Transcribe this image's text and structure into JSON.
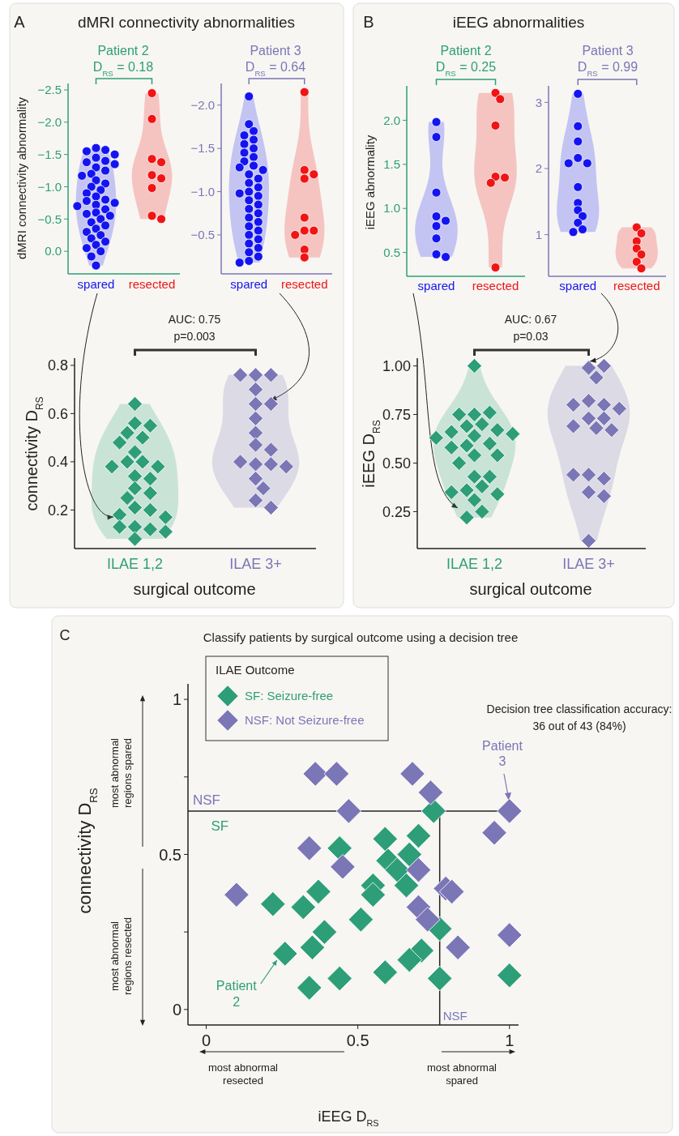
{
  "chart_data": [
    {
      "type": "scatter",
      "title": "Patient 2",
      "subtitle": "D$_{RS}$ = 0.18",
      "ylabel": "dMRI connectivity abnormality",
      "annotations": [
        "A",
        "dMRI connectivity abnormalities"
      ],
      "marker": "circle",
      "categories": [
        "spared",
        "resected"
      ],
      "ylim": [
        0.35,
        -2.6
      ],
      "yticks": [
        {
          "value": -2.5,
          "label": "−2.5"
        },
        {
          "value": -2,
          "label": "−2.0"
        },
        {
          "value": -1.5,
          "label": "−1.5"
        },
        {
          "value": -1,
          "label": "−1.0"
        },
        {
          "value": -0.5,
          "label": "−0.5"
        },
        {
          "value": 0,
          "label": "0.0"
        }
      ],
      "series": [
        {
          "color": "#1414f0",
          "x": [
            "spared",
            "spared",
            "spared",
            "spared",
            "spared",
            "spared",
            "spared",
            "spared",
            "spared",
            "spared",
            "spared",
            "spared",
            "spared",
            "spared",
            "spared",
            "spared",
            "spared",
            "spared",
            "spared",
            "spared",
            "spared",
            "spared",
            "spared",
            "spared",
            "spared",
            "spared",
            "spared",
            "spared",
            "spared",
            "spared",
            "spared",
            "spared",
            "spared",
            "spared",
            "spared",
            "spared",
            "spared",
            "spared",
            "spared",
            "spared"
          ],
          "values": [
            -1.6,
            -1.57,
            -1.55,
            -1.5,
            -1.45,
            -1.4,
            -1.38,
            -1.35,
            -1.3,
            -1.25,
            -1.2,
            -1.17,
            -1.1,
            -1.05,
            -1.0,
            -0.95,
            -0.9,
            -0.85,
            -0.8,
            -0.78,
            -0.75,
            -0.72,
            -0.7,
            -0.65,
            -0.6,
            -0.58,
            -0.55,
            -0.5,
            -0.45,
            -0.4,
            -0.35,
            -0.3,
            -0.25,
            -0.2,
            -0.15,
            -0.1,
            -0.05,
            0.0,
            0.08,
            0.22
          ]
        },
        {
          "color": "#f01414",
          "x": [
            "resected",
            "resected",
            "resected",
            "resected",
            "resected",
            "resected",
            "resected",
            "resected",
            "resected"
          ],
          "values": [
            -2.45,
            -2.05,
            -1.43,
            -1.38,
            -1.18,
            -1.13,
            -0.98,
            -0.55,
            -0.5
          ]
        }
      ]
    },
    {
      "type": "scatter",
      "title": "Patient 3",
      "subtitle": "D$_{RS}$ = 0.64",
      "marker": "circle",
      "categories": [
        "spared",
        "resected"
      ],
      "ylim": [
        -0.05,
        -2.25
      ],
      "yticks": [
        {
          "value": -2,
          "label": "−2.0"
        },
        {
          "value": -1.5,
          "label": "−1.5"
        },
        {
          "value": -1,
          "label": "−1.0"
        },
        {
          "value": -0.5,
          "label": "−0.5"
        }
      ],
      "series": [
        {
          "color": "#1414f0",
          "x": [
            "spared",
            "spared",
            "spared",
            "spared",
            "spared",
            "spared",
            "spared",
            "spared",
            "spared",
            "spared",
            "spared",
            "spared",
            "spared",
            "spared",
            "spared",
            "spared",
            "spared",
            "spared",
            "spared",
            "spared",
            "spared",
            "spared",
            "spared",
            "spared",
            "spared",
            "spared",
            "spared",
            "spared",
            "spared",
            "spared",
            "spared",
            "spared",
            "spared",
            "spared",
            "spared",
            "spared"
          ],
          "values": [
            -2.1,
            -1.78,
            -1.7,
            -1.65,
            -1.6,
            -1.55,
            -1.5,
            -1.45,
            -1.4,
            -1.35,
            -1.3,
            -1.28,
            -1.25,
            -1.2,
            -1.15,
            -1.1,
            -1.05,
            -1.0,
            -0.98,
            -0.95,
            -0.9,
            -0.85,
            -0.8,
            -0.75,
            -0.7,
            -0.65,
            -0.6,
            -0.55,
            -0.5,
            -0.45,
            -0.4,
            -0.35,
            -0.3,
            -0.25,
            -0.2,
            -0.18
          ]
        },
        {
          "color": "#f01414",
          "x": [
            "resected",
            "resected",
            "resected",
            "resected",
            "resected",
            "resected",
            "resected",
            "resected",
            "resected",
            "resected"
          ],
          "values": [
            -2.15,
            -1.25,
            -1.2,
            -1.15,
            -0.7,
            -0.55,
            -0.55,
            -0.5,
            -0.33,
            -0.24
          ]
        }
      ]
    },
    {
      "type": "scatter",
      "ylabel": "connectivity D$_{RS}$",
      "xlabel": "surgical outcome",
      "annotations": [
        "AUC: 0.75",
        "p=0.003"
      ],
      "marker": "diamond",
      "categories": [
        "ILAE 1,2",
        "ILAE 3+"
      ],
      "ylim": [
        0.04,
        0.83
      ],
      "yticks": [
        0.2,
        0.4,
        0.6,
        0.8
      ],
      "series": [
        {
          "color": "#2e9e78",
          "x": [
            "ILAE 1,2",
            "ILAE 1,2",
            "ILAE 1,2",
            "ILAE 1,2",
            "ILAE 1,2",
            "ILAE 1,2",
            "ILAE 1,2",
            "ILAE 1,2",
            "ILAE 1,2",
            "ILAE 1,2",
            "ILAE 1,2",
            "ILAE 1,2",
            "ILAE 1,2",
            "ILAE 1,2",
            "ILAE 1,2",
            "ILAE 1,2",
            "ILAE 1,2",
            "ILAE 1,2",
            "ILAE 1,2",
            "ILAE 1,2",
            "ILAE 1,2",
            "ILAE 1,2",
            "ILAE 1,2",
            "ILAE 1,2",
            "ILAE 1,2"
          ],
          "values": [
            0.64,
            0.56,
            0.55,
            0.52,
            0.5,
            0.48,
            0.44,
            0.4,
            0.4,
            0.38,
            0.38,
            0.34,
            0.33,
            0.29,
            0.27,
            0.25,
            0.21,
            0.2,
            0.18,
            0.17,
            0.13,
            0.12,
            0.13,
            0.11,
            0.08
          ]
        },
        {
          "color": "#7b76b5",
          "x": [
            "ILAE 3+",
            "ILAE 3+",
            "ILAE 3+",
            "ILAE 3+",
            "ILAE 3+",
            "ILAE 3+",
            "ILAE 3+",
            "ILAE 3+",
            "ILAE 3+",
            "ILAE 3+",
            "ILAE 3+",
            "ILAE 3+",
            "ILAE 3+",
            "ILAE 3+",
            "ILAE 3+",
            "ILAE 3+",
            "ILAE 3+",
            "ILAE 3+"
          ],
          "values": [
            0.76,
            0.76,
            0.76,
            0.7,
            0.64,
            0.64,
            0.58,
            0.52,
            0.47,
            0.45,
            0.39,
            0.39,
            0.4,
            0.38,
            0.33,
            0.29,
            0.24,
            0.21
          ]
        }
      ]
    },
    {
      "type": "scatter",
      "title": "Patient 2",
      "subtitle": "D$_{RS}$ = 0.25",
      "ylabel": "iEEG abnormality",
      "annotations": [
        "B",
        "iEEG abnormalities"
      ],
      "marker": "circle",
      "categories": [
        "spared",
        "resected"
      ],
      "ylim": [
        0.23,
        2.39
      ],
      "yticks": [
        0.5,
        {
          "value": 1,
          "label": "1.0"
        },
        1.5,
        {
          "value": 2,
          "label": "2.0"
        }
      ],
      "series": [
        {
          "color": "#1414f0",
          "x": [
            "spared",
            "spared",
            "spared",
            "spared",
            "spared",
            "spared",
            "spared",
            "spared",
            "spared"
          ],
          "values": [
            1.98,
            1.81,
            1.18,
            0.91,
            0.86,
            0.8,
            0.66,
            0.48,
            0.45
          ]
        },
        {
          "color": "#f01414",
          "x": [
            "resected",
            "resected",
            "resected",
            "resected",
            "resected",
            "resected",
            "resected"
          ],
          "values": [
            2.31,
            2.24,
            1.94,
            1.36,
            1.35,
            1.29,
            0.33
          ]
        }
      ]
    },
    {
      "type": "scatter",
      "title": "Patient 3",
      "subtitle": "D$_{RS}$ = 0.99",
      "marker": "circle",
      "categories": [
        "spared",
        "resected"
      ],
      "ylim": [
        0.37,
        3.25
      ],
      "yticks": [
        1,
        2,
        3
      ],
      "series": [
        {
          "color": "#1414f0",
          "x": [
            "spared",
            "spared",
            "spared",
            "spared",
            "spared",
            "spared",
            "spared",
            "spared",
            "spared",
            "spared",
            "spared",
            "spared",
            "spared"
          ],
          "values": [
            3.13,
            2.64,
            2.41,
            2.16,
            2.08,
            2.08,
            1.72,
            1.48,
            1.37,
            1.28,
            1.18,
            1.08,
            1.04
          ]
        },
        {
          "color": "#f01414",
          "x": [
            "resected",
            "resected",
            "resected",
            "resected",
            "resected",
            "resected",
            "resected"
          ],
          "values": [
            1.11,
            1.02,
            0.9,
            0.79,
            0.7,
            0.59,
            0.49
          ]
        }
      ]
    },
    {
      "type": "scatter",
      "ylabel": "iEEG D$_{RS}$",
      "xlabel": "surgical outcome",
      "annotations": [
        "AUC: 0.67",
        "p=0.03"
      ],
      "marker": "diamond",
      "categories": [
        "ILAE 1,2",
        "ILAE 3+"
      ],
      "ylim": [
        0.06,
        1.04
      ],
      "yticks": [
        0.25,
        {
          "value": 0.5,
          "label": "0.50"
        },
        0.75,
        {
          "value": 1,
          "label": "1.00"
        }
      ],
      "series": [
        {
          "color": "#2e9e78",
          "x": [
            "ILAE 1,2",
            "ILAE 1,2",
            "ILAE 1,2",
            "ILAE 1,2",
            "ILAE 1,2",
            "ILAE 1,2",
            "ILAE 1,2",
            "ILAE 1,2",
            "ILAE 1,2",
            "ILAE 1,2",
            "ILAE 1,2",
            "ILAE 1,2",
            "ILAE 1,2",
            "ILAE 1,2",
            "ILAE 1,2",
            "ILAE 1,2",
            "ILAE 1,2",
            "ILAE 1,2",
            "ILAE 1,2",
            "ILAE 1,2",
            "ILAE 1,2",
            "ILAE 1,2",
            "ILAE 1,2",
            "ILAE 1,2",
            "ILAE 1,2",
            "ILAE 1,2"
          ],
          "values": [
            1.0,
            0.75,
            0.76,
            0.75,
            0.7,
            0.69,
            0.67,
            0.66,
            0.65,
            0.64,
            0.63,
            0.6,
            0.59,
            0.58,
            0.54,
            0.54,
            0.5,
            0.43,
            0.43,
            0.38,
            0.36,
            0.34,
            0.35,
            0.31,
            0.25,
            0.22
          ]
        },
        {
          "color": "#7b76b5",
          "x": [
            "ILAE 3+",
            "ILAE 3+",
            "ILAE 3+",
            "ILAE 3+",
            "ILAE 3+",
            "ILAE 3+",
            "ILAE 3+",
            "ILAE 3+",
            "ILAE 3+",
            "ILAE 3+",
            "ILAE 3+",
            "ILAE 3+",
            "ILAE 3+",
            "ILAE 3+",
            "ILAE 3+",
            "ILAE 3+",
            "ILAE 3+",
            "ILAE 3+"
          ],
          "values": [
            0.99,
            1.0,
            0.94,
            0.82,
            0.8,
            0.8,
            0.78,
            0.73,
            0.73,
            0.68,
            0.69,
            0.67,
            0.44,
            0.42,
            0.44,
            0.35,
            0.33,
            0.1
          ]
        }
      ]
    },
    {
      "type": "scatter",
      "title": "Classify patients by surgical outcome using a decision tree",
      "xlabel": "iEEG D$_{RS}$",
      "ylabel": "connectivity D$_{RS}$",
      "legend_title": "ILAE Outcome",
      "legend": "top left",
      "marker": "diamond",
      "annotations": [
        "C",
        "Decision tree classification accuracy:",
        "36 out of 43 (84%)",
        "most abnormal regions spared",
        "most abnormal regions resected",
        "most abnormal resected",
        "most abnormal spared",
        "Patient 3",
        {
          "text": "Patient 2",
          "x": 0.26,
          "y": 0.18
        },
        {
          "text": "SF",
          "x": 0.0,
          "y": 0.64
        }
      ],
      "xlim": [
        -0.06,
        1.03
      ],
      "xticks": [
        0,
        0.5,
        1
      ],
      "ylim": [
        -0.05,
        1.05
      ],
      "yticks": [
        0,
        {
          "value": 0.25,
          "label": null
        },
        0.5,
        {
          "value": 0.75,
          "label": null
        },
        1
      ],
      "ref_lines": [
        {
          "axis": "y",
          "value": 0.64,
          "label": "NSF"
        },
        {
          "axis": "x",
          "value": 0.77,
          "label": "NSF"
        }
      ],
      "series": [
        {
          "name": "SF: Seizure-free",
          "color": "#2e9e78",
          "x": [
            0.75,
            0.59,
            0.7,
            0.44,
            0.6,
            0.67,
            0.63,
            0.55,
            0.55,
            0.66,
            0.37,
            0.22,
            0.32,
            0.51,
            0.39,
            0.35,
            0.26,
            0.77,
            0.71,
            0.67,
            0.59,
            0.44,
            0.34,
            0.77,
            1.0
          ],
          "values": [
            0.64,
            0.55,
            0.56,
            0.52,
            0.48,
            0.5,
            0.45,
            0.4,
            0.37,
            0.4,
            0.38,
            0.34,
            0.33,
            0.29,
            0.25,
            0.2,
            0.18,
            0.26,
            0.19,
            0.16,
            0.12,
            0.1,
            0.07,
            0.1,
            0.11
          ]
        },
        {
          "name": "NSF: Not Seizure-free",
          "color": "#7b76b5",
          "x": [
            0.36,
            0.43,
            0.68,
            0.74,
            0.47,
            1.0,
            0.95,
            0.34,
            0.45,
            0.7,
            0.1,
            0.79,
            0.81,
            0.7,
            0.73,
            0.83,
            1.0
          ],
          "values": [
            0.76,
            0.76,
            0.76,
            0.7,
            0.64,
            0.64,
            0.57,
            0.52,
            0.46,
            0.45,
            0.37,
            0.39,
            0.38,
            0.33,
            0.29,
            0.2,
            0.24
          ]
        }
      ]
    }
  ]
}
